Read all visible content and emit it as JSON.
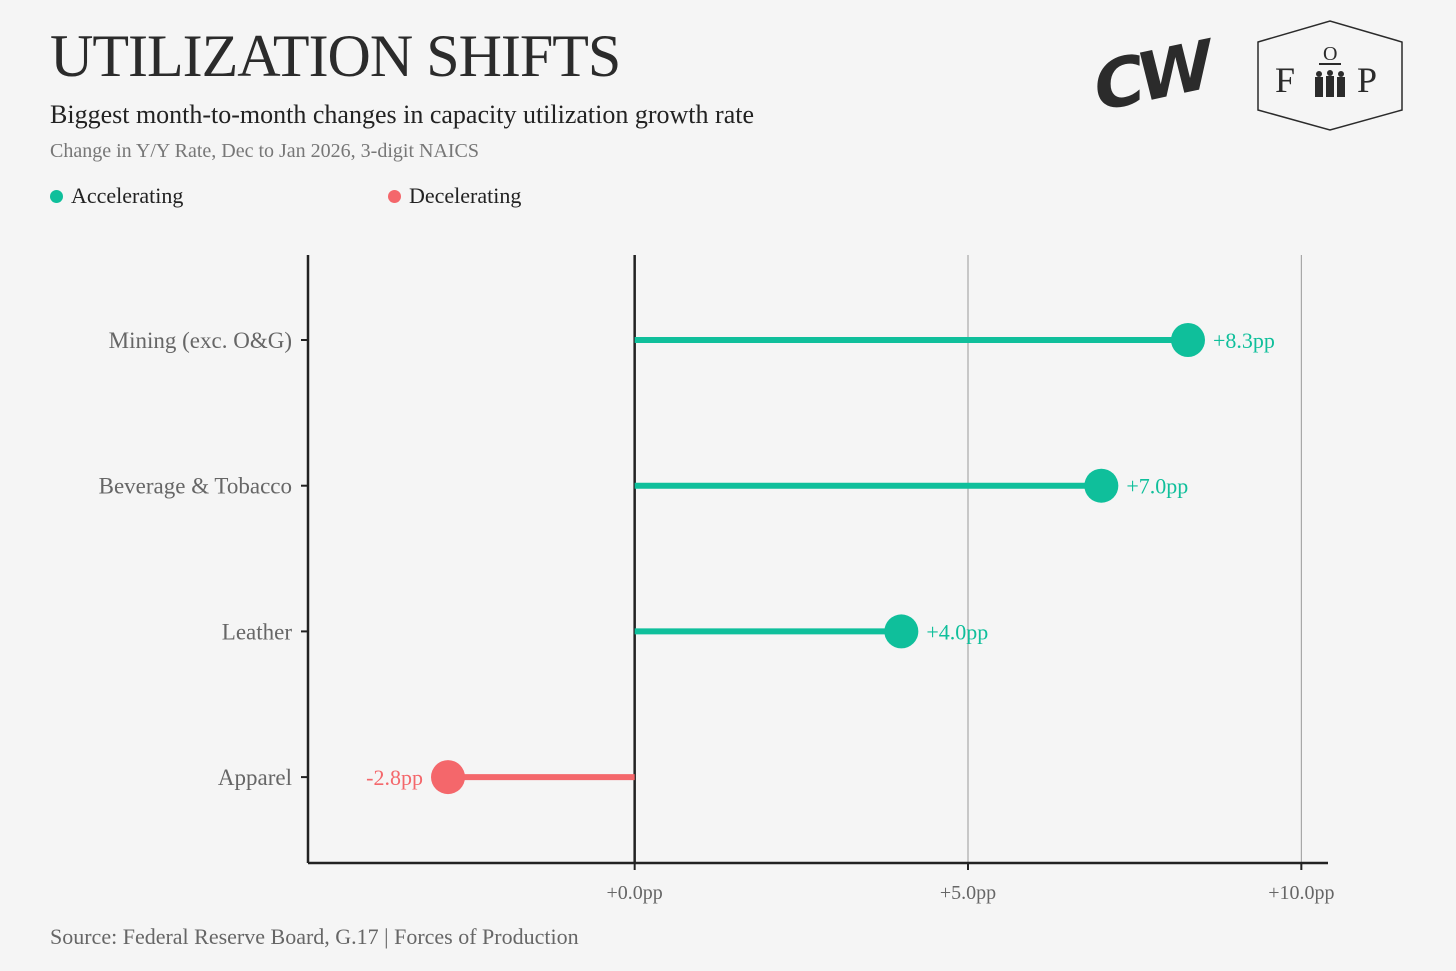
{
  "header": {
    "title": "UTILIZATION SHIFTS",
    "subtitle": "Biggest month-to-month changes in capacity utilization growth rate",
    "caption": "Change in Y/Y Rate, Dec to Jan 2026, 3-digit NAICS"
  },
  "logos": {
    "cw": "CW",
    "fop_f": "F",
    "fop_o": "O",
    "fop_p": "P"
  },
  "source": "Source: Federal Reserve Board, G.17 | Forces of Production",
  "colors": {
    "accelerating": "#0fbf9b",
    "decelerating": "#f4676b",
    "axis": "#222222",
    "grid": "#999999"
  },
  "chart_data": {
    "type": "lollipop",
    "title": "UTILIZATION SHIFTS",
    "legend": [
      {
        "label": "Accelerating",
        "color": "#0fbf9b"
      },
      {
        "label": "Decelerating",
        "color": "#f4676b"
      }
    ],
    "legend_position": "top-left",
    "categories": [
      "Mining (exc. O&G)",
      "Beverage & Tobacco",
      "Leather",
      "Apparel"
    ],
    "values": [
      8.3,
      7.0,
      4.0,
      -2.8
    ],
    "labels": [
      "+8.3pp",
      "+7.0pp",
      "+4.0pp",
      "-2.8pp"
    ],
    "xlim": [
      -4.9,
      10.4
    ],
    "xticks": [
      0,
      5,
      10
    ],
    "xtick_labels": [
      "+0.0pp",
      "+5.0pp",
      "+10.0pp"
    ],
    "xlabel": "",
    "ylabel": "",
    "grid": "vertical"
  }
}
